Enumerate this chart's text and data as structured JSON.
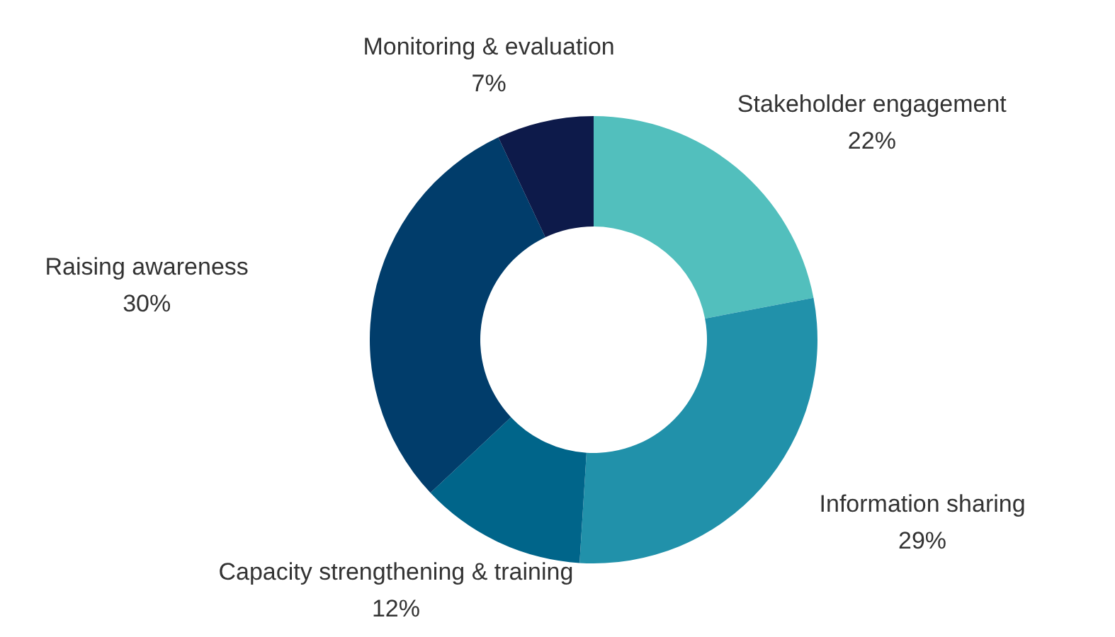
{
  "chart_data": {
    "type": "donut",
    "categories": [
      "Stakeholder engagement",
      "Information sharing",
      "Capacity strengthening & training",
      "Raising awareness",
      "Monitoring & evaluation"
    ],
    "values": [
      22,
      29,
      12,
      30,
      7
    ],
    "colors": [
      "#52bfbd",
      "#2191aa",
      "#00658a",
      "#013d6b",
      "#0d1a4a"
    ],
    "value_labels": [
      "22%",
      "29%",
      "12%",
      "30%",
      "7%"
    ]
  }
}
